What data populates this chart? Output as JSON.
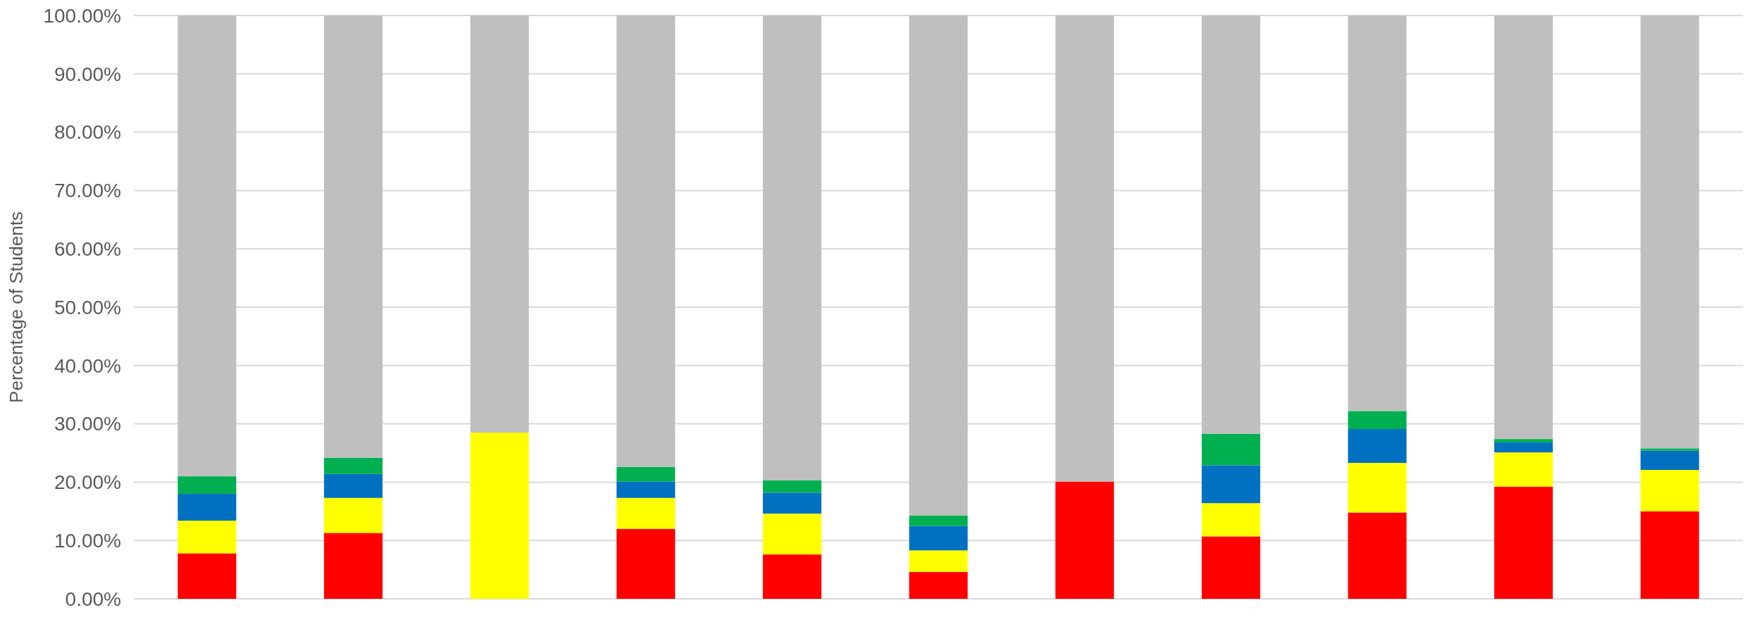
{
  "chart_data": {
    "type": "bar",
    "stacked": true,
    "ylabel": "Percentage of Students",
    "categories": [
      null,
      null,
      null,
      null,
      null,
      null,
      null,
      null,
      null,
      null,
      null
    ],
    "series": [
      {
        "color": "#ff0000",
        "values": [
          7.8,
          11.3,
          0,
          12.0,
          7.6,
          4.6,
          20.1,
          10.7,
          14.8,
          19.2,
          15.0
        ]
      },
      {
        "color": "#ffff00",
        "values": [
          5.6,
          6.0,
          28.5,
          5.3,
          7.0,
          3.7,
          0,
          5.7,
          8.5,
          5.9,
          7.1
        ]
      },
      {
        "color": "#0070c0",
        "values": [
          4.6,
          4.1,
          0,
          2.8,
          3.6,
          4.2,
          0,
          6.5,
          5.8,
          1.7,
          3.3
        ]
      },
      {
        "color": "#00b050",
        "values": [
          3.0,
          2.8,
          0,
          2.5,
          2.1,
          1.8,
          0,
          5.4,
          3.1,
          0.6,
          0.4
        ]
      },
      {
        "color": "#bfbfbf",
        "values": [
          79.0,
          75.8,
          71.5,
          77.4,
          79.7,
          85.7,
          79.9,
          71.7,
          67.8,
          72.6,
          74.2
        ]
      }
    ],
    "ylim": [
      0,
      100
    ],
    "yticks": [
      {
        "value": 0,
        "label": "0.00%"
      },
      {
        "value": 10,
        "label": "10.00%"
      },
      {
        "value": 20,
        "label": "20.00%"
      },
      {
        "value": 30,
        "label": "30.00%"
      },
      {
        "value": 40,
        "label": "40.00%"
      },
      {
        "value": 50,
        "label": "50.00%"
      },
      {
        "value": 60,
        "label": "60.00%"
      },
      {
        "value": 70,
        "label": "70.00%"
      },
      {
        "value": 80,
        "label": "80.00%"
      },
      {
        "value": 90,
        "label": "90.00%"
      },
      {
        "value": 100,
        "label": "100.00%"
      }
    ],
    "grid": "y"
  }
}
